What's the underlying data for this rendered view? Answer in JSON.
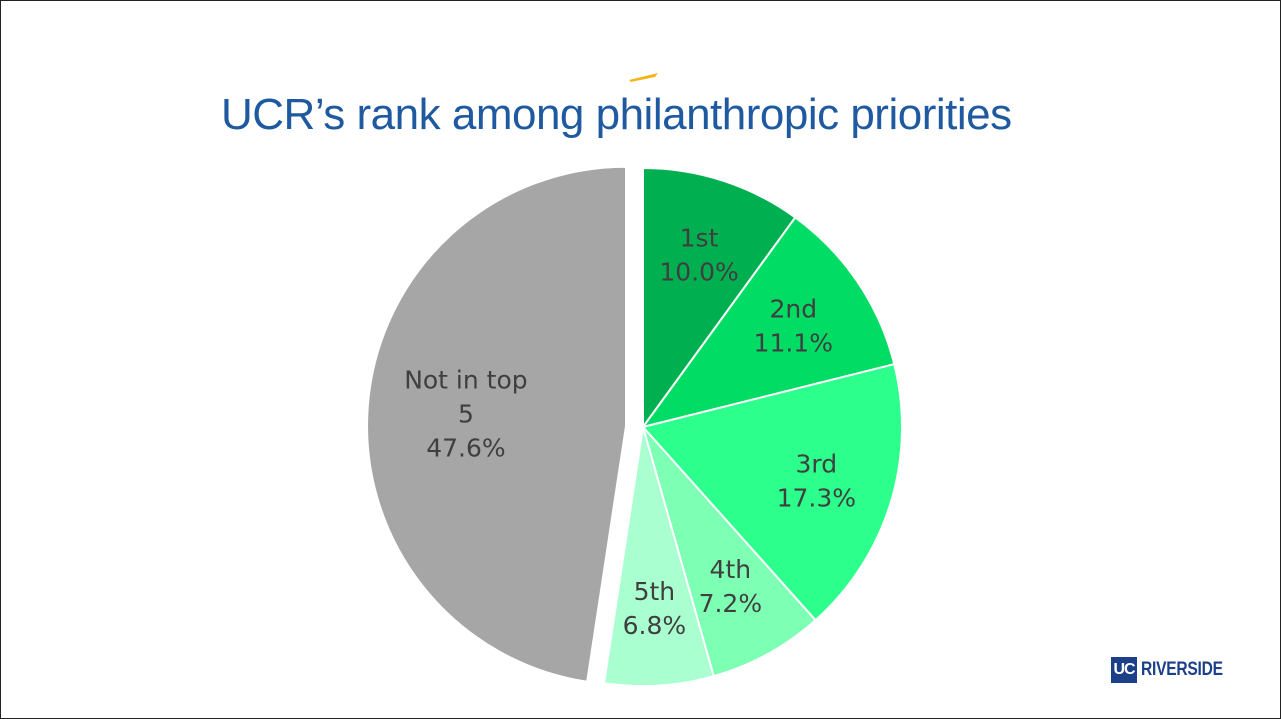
{
  "colors": {
    "title": "#1f5aa0",
    "accent": "#f5b51b",
    "label": "#3f3f3f",
    "logo": "#1c3f8a"
  },
  "logo": {
    "mark": "UC",
    "text": "RIVERSIDE"
  },
  "chart_data": {
    "type": "pie",
    "title": "UCR’s rank among philanthropic priorities",
    "slices": [
      {
        "label": "1st",
        "value": 10.0,
        "value_label": "10.0%",
        "color": "#00b050"
      },
      {
        "label": "2nd",
        "value": 11.1,
        "value_label": "11.1%",
        "color": "#00dc64"
      },
      {
        "label": "3rd",
        "value": 17.3,
        "value_label": "17.3%",
        "color": "#2cff8c"
      },
      {
        "label": "4th",
        "value": 7.2,
        "value_label": "7.2%",
        "color": "#7dffb4"
      },
      {
        "label": "5th",
        "value": 6.8,
        "value_label": "6.8%",
        "color": "#a9ffcf"
      },
      {
        "label": "Not in top 5",
        "value": 47.6,
        "value_label": "47.6%",
        "color": "#a6a6a6",
        "exploded": true
      }
    ],
    "start_angle": "12 o'clock",
    "direction": "clockwise",
    "legend": "none"
  }
}
